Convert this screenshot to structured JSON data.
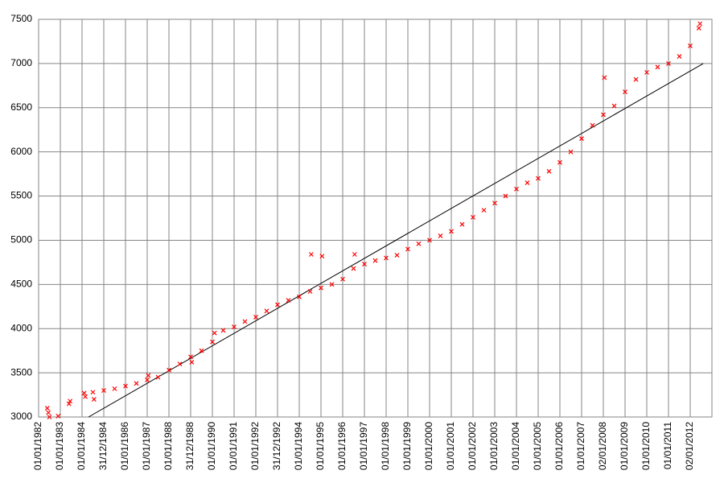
{
  "chart_data": {
    "type": "scatter",
    "points": {
      "color": "#ff0000",
      "x": [
        1982.4,
        1982.45,
        1982.5,
        1982.9,
        1983.4,
        1983.45,
        1984.1,
        1984.15,
        1984.5,
        1984.55,
        1985.0,
        1985.5,
        1986.0,
        1986.5,
        1987.0,
        1987.05,
        1987.5,
        1988.0,
        1988.5,
        1989.0,
        1989.05,
        1989.5,
        1990.0,
        1990.1,
        1990.5,
        1991.0,
        1991.5,
        1992.0,
        1992.5,
        1993.0,
        1993.5,
        1994.0,
        1994.5,
        1994.55,
        1995.0,
        1995.05,
        1995.5,
        1996.0,
        1996.5,
        1996.55,
        1997.0,
        1997.5,
        1998.0,
        1998.5,
        1999.0,
        1999.5,
        2000.0,
        2000.5,
        2001.0,
        2001.5,
        2002.0,
        2002.5,
        2003.0,
        2003.5,
        2004.0,
        2004.5,
        2005.0,
        2005.5,
        2006.0,
        2006.5,
        2007.0,
        2007.5,
        2008.0,
        2008.05,
        2008.5,
        2009.0,
        2009.5,
        2010.0,
        2010.5,
        2011.0,
        2011.5,
        2012.0,
        2012.4,
        2012.45
      ],
      "values": [
        3100,
        3050,
        3000,
        3010,
        3150,
        3180,
        3270,
        3230,
        3280,
        3200,
        3300,
        3320,
        3350,
        3380,
        3420,
        3470,
        3450,
        3530,
        3600,
        3680,
        3620,
        3750,
        3850,
        3950,
        3980,
        4020,
        4080,
        4130,
        4200,
        4270,
        4320,
        4360,
        4420,
        4840,
        4460,
        4820,
        4500,
        4560,
        4680,
        4840,
        4730,
        4770,
        4800,
        4830,
        4900,
        4960,
        5000,
        5050,
        5100,
        5180,
        5260,
        5340,
        5420,
        5500,
        5580,
        5650,
        5700,
        5780,
        5880,
        6000,
        6150,
        6300,
        6420,
        6840,
        6520,
        6680,
        6820,
        6900,
        6960,
        7000,
        7080,
        7200,
        7400,
        7450
      ]
    },
    "trend": {
      "color": "#000000",
      "x": [
        1984.3,
        2012.6
      ],
      "values": [
        3000,
        7000
      ]
    },
    "xlim": [
      1982,
      2013
    ],
    "xticks": [
      {
        "value": 1982,
        "label": "01/01/1982"
      },
      {
        "value": 1983,
        "label": "01/01/1983"
      },
      {
        "value": 1984,
        "label": "01/01/1984"
      },
      {
        "value": 1985,
        "label": "31/12/1984"
      },
      {
        "value": 1986,
        "label": "01/01/1986"
      },
      {
        "value": 1987,
        "label": "01/01/1987"
      },
      {
        "value": 1988,
        "label": "01/01/1988"
      },
      {
        "value": 1989,
        "label": "31/12/1988"
      },
      {
        "value": 1990,
        "label": "01/01/1990"
      },
      {
        "value": 1991,
        "label": "01/01/1991"
      },
      {
        "value": 1992,
        "label": "01/01/1992"
      },
      {
        "value": 1993,
        "label": "31/12/1992"
      },
      {
        "value": 1994,
        "label": "01/01/1994"
      },
      {
        "value": 1995,
        "label": "01/01/1995"
      },
      {
        "value": 1996,
        "label": "01/01/1996"
      },
      {
        "value": 1997,
        "label": "01/01/1997"
      },
      {
        "value": 1998,
        "label": "01/01/1998"
      },
      {
        "value": 1999,
        "label": "01/01/1999"
      },
      {
        "value": 2000,
        "label": "01/01/2000"
      },
      {
        "value": 2001,
        "label": "01/01/2001"
      },
      {
        "value": 2002,
        "label": "01/01/2002"
      },
      {
        "value": 2003,
        "label": "01/01/2003"
      },
      {
        "value": 2004,
        "label": "01/01/2004"
      },
      {
        "value": 2005,
        "label": "01/01/2005"
      },
      {
        "value": 2006,
        "label": "01/01/2006"
      },
      {
        "value": 2007,
        "label": "01/01/2007"
      },
      {
        "value": 2008,
        "label": "02/01/2008"
      },
      {
        "value": 2009,
        "label": "01/01/2009"
      },
      {
        "value": 2010,
        "label": "01/01/2010"
      },
      {
        "value": 2011,
        "label": "01/01/2011"
      },
      {
        "value": 2012,
        "label": "02/01/2012"
      }
    ],
    "ylim": [
      3000,
      7500
    ],
    "yticks": [
      3000,
      3500,
      4000,
      4500,
      5000,
      5500,
      6000,
      6500,
      7000,
      7500
    ],
    "grid": true
  }
}
